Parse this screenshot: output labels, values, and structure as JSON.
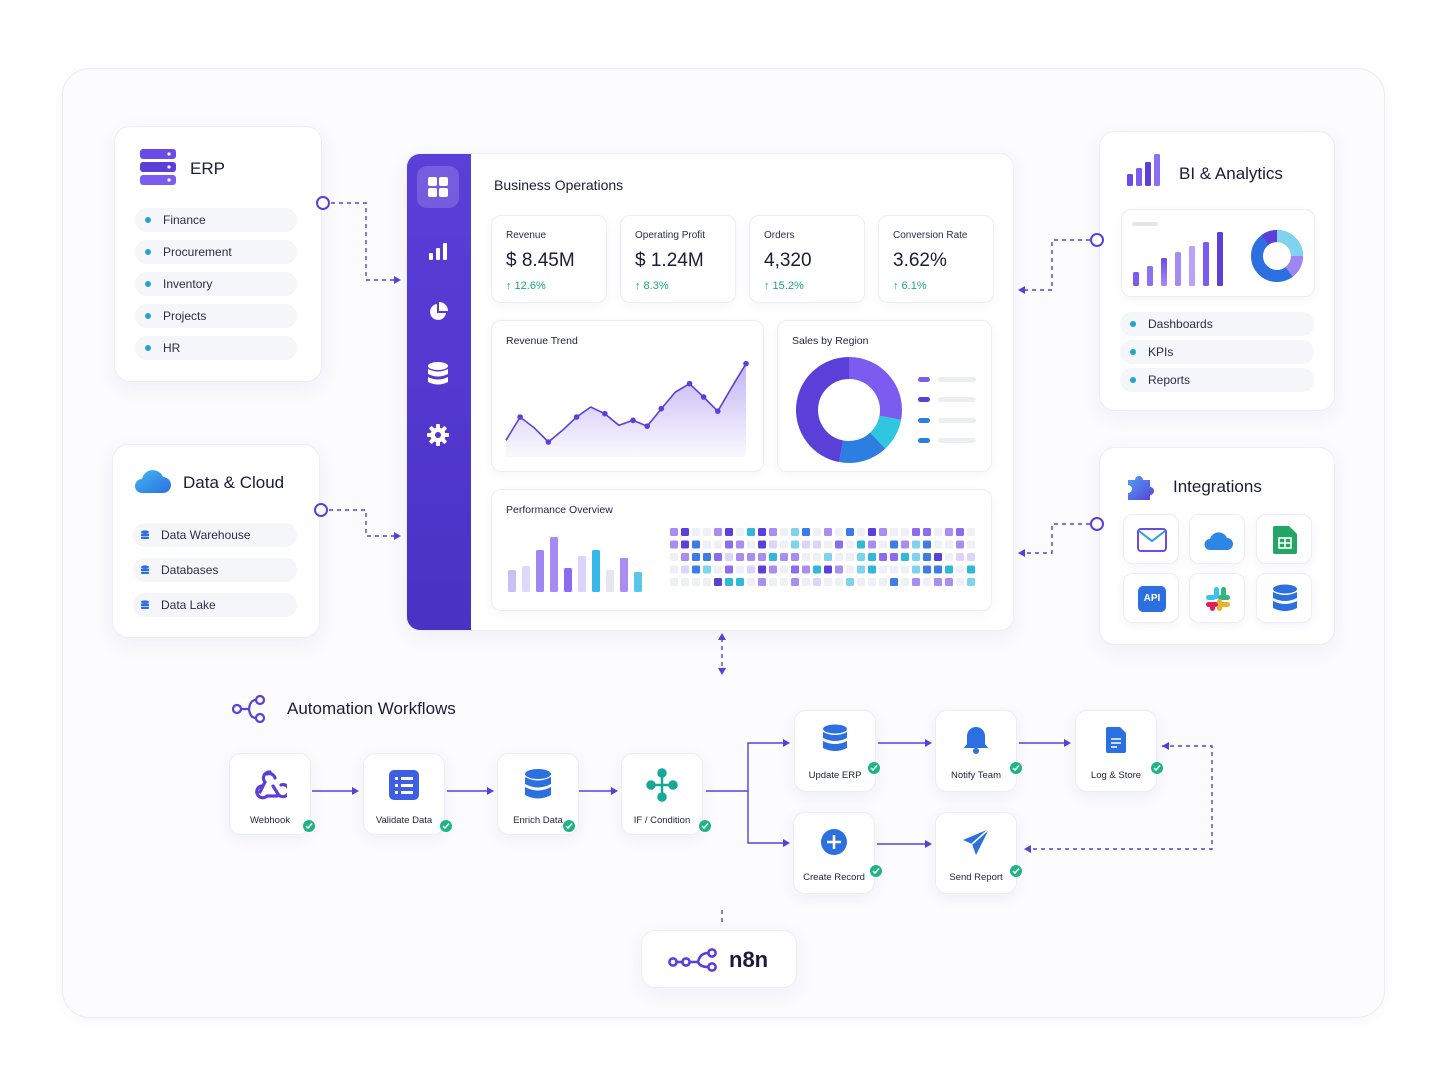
{
  "erp": {
    "title": "ERP",
    "items": [
      "Finance",
      "Procurement",
      "Inventory",
      "Projects",
      "HR"
    ]
  },
  "data_cloud": {
    "title": "Data & Cloud",
    "items": [
      "Data Warehouse",
      "Databases",
      "Data Lake"
    ]
  },
  "bi": {
    "title": "BI & Analytics",
    "items": [
      "Dashboards",
      "KPIs",
      "Reports"
    ]
  },
  "integrations": {
    "title": "Integrations",
    "icons": [
      "mail-icon",
      "cloud-icon",
      "sheets-icon",
      "api-icon",
      "slack-icon",
      "database-icon"
    ],
    "api_label": "API"
  },
  "dashboard": {
    "title": "Business Operations",
    "nav_icons": [
      "grid-icon",
      "bar-chart-icon",
      "pie-chart-icon",
      "database-icon",
      "gear-icon"
    ],
    "kpis": [
      {
        "label": "Revenue",
        "value": "$ 8.45M",
        "change": "↑ 12.6%"
      },
      {
        "label": "Operating Profit",
        "value": "$ 1.24M",
        "change": "↑ 8.3%"
      },
      {
        "label": "Orders",
        "value": "4,320",
        "change": "↑ 15.2%"
      },
      {
        "label": "Conversion Rate",
        "value": "3.62%",
        "change": "↑ 6.1%"
      }
    ],
    "revenue_trend_title": "Revenue Trend",
    "sales_region_title": "Sales by Region",
    "performance_title": "Performance Overview"
  },
  "chart_data": [
    {
      "type": "line",
      "title": "Revenue Trend",
      "x": [
        1,
        2,
        3,
        4,
        5,
        6,
        7,
        8,
        9,
        10,
        11,
        12,
        13,
        14,
        15,
        16,
        17,
        18
      ],
      "series": [
        {
          "values": [
            20,
            48,
            35,
            18,
            32,
            48,
            60,
            52,
            38,
            44,
            37,
            58,
            78,
            88,
            72,
            55,
            84,
            112
          ]
        }
      ],
      "ylim": [
        0,
        120
      ]
    },
    {
      "type": "pie",
      "title": "Sales by Region",
      "values": [
        28,
        10,
        15,
        47
      ],
      "colors": [
        "#7c5cf0",
        "#2fc7e0",
        "#2c7fe0",
        "#5b3fd9"
      ]
    },
    {
      "type": "bar",
      "title": "Performance Overview",
      "values": [
        22,
        26,
        42,
        55,
        24,
        36,
        42,
        22,
        34,
        20
      ],
      "colors": [
        "#c9c0f5",
        "#ded8fa",
        "#9f86f0",
        "#a78bf5",
        "#8b6cf0",
        "#dcd4fa",
        "#38b8e8",
        "#e6e6f2",
        "#a98df2",
        "#56c8ec"
      ]
    }
  ],
  "workflow": {
    "title": "Automation Workflows",
    "nodes": [
      "Webhook",
      "Validate Data",
      "Enrich Data",
      "IF / Condition",
      "Update ERP",
      "Notify Team",
      "Log & Store",
      "Create Record",
      "Send Report"
    ]
  },
  "brand": {
    "label": "n8n",
    "accent": "#5b3fd9",
    "success": "#1fb484"
  }
}
